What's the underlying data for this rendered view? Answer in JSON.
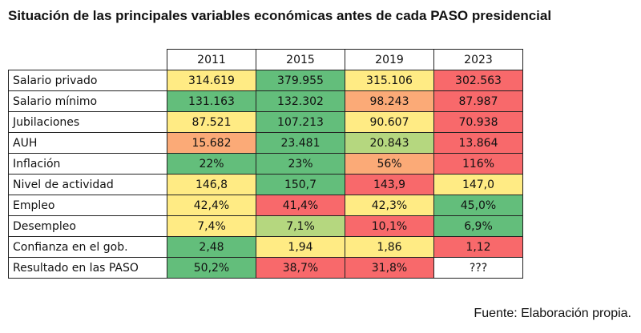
{
  "title": "Situación de las principales variables económicas antes de cada PASO presidencial",
  "source": "Fuente: Elaboración propia.",
  "colors": {
    "green": "#63be7b",
    "lightgreen": "#b5d77f",
    "yellow": "#ffeb84",
    "orange": "#fbaa77",
    "red": "#f8696b",
    "white": "#ffffff"
  },
  "table": {
    "years": [
      "2011",
      "2015",
      "2019",
      "2023"
    ],
    "rows": [
      {
        "label": "Salario privado",
        "values": [
          "314.619",
          "379.955",
          "315.106",
          "302.563"
        ],
        "colors": [
          "yellow",
          "green",
          "yellow",
          "red"
        ]
      },
      {
        "label": "Salario mínimo",
        "values": [
          "131.163",
          "132.302",
          "98.243",
          "87.987"
        ],
        "colors": [
          "green",
          "green",
          "orange",
          "red"
        ]
      },
      {
        "label": "Jubilaciones",
        "values": [
          "87.521",
          "107.213",
          "90.607",
          "70.938"
        ],
        "colors": [
          "yellow",
          "green",
          "yellow",
          "red"
        ]
      },
      {
        "label": "AUH",
        "values": [
          "15.682",
          "23.481",
          "20.843",
          "13.864"
        ],
        "colors": [
          "orange",
          "green",
          "lightgreen",
          "red"
        ]
      },
      {
        "label": "Inflación",
        "values": [
          "22%",
          "23%",
          "56%",
          "116%"
        ],
        "colors": [
          "green",
          "green",
          "orange",
          "red"
        ]
      },
      {
        "label": "Nivel de actividad",
        "values": [
          "146,8",
          "150,7",
          "143,9",
          "147,0"
        ],
        "colors": [
          "yellow",
          "green",
          "red",
          "yellow"
        ]
      },
      {
        "label": "Empleo",
        "values": [
          "42,4%",
          "41,4%",
          "42,3%",
          "45,0%"
        ],
        "colors": [
          "yellow",
          "red",
          "yellow",
          "green"
        ]
      },
      {
        "label": "Desempleo",
        "values": [
          "7,4%",
          "7,1%",
          "10,1%",
          "6,9%"
        ],
        "colors": [
          "yellow",
          "lightgreen",
          "red",
          "green"
        ]
      },
      {
        "label": "Confianza en el gob.",
        "values": [
          "2,48",
          "1,94",
          "1,86",
          "1,12"
        ],
        "colors": [
          "green",
          "yellow",
          "yellow",
          "red"
        ]
      },
      {
        "label": "Resultado en las PASO",
        "values": [
          "50,2%",
          "38,7%",
          "31,8%",
          "???"
        ],
        "colors": [
          "green",
          "red",
          "red",
          "white"
        ]
      }
    ]
  }
}
